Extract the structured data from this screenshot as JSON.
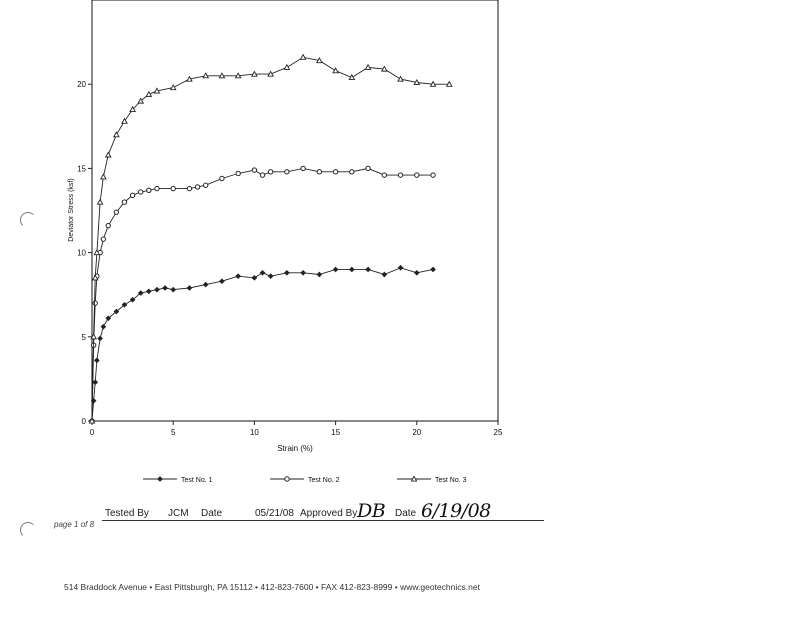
{
  "chart_data": {
    "type": "line",
    "xlabel": "Strain (%)",
    "ylabel": "Deviator Stress (ksf)",
    "xlim": [
      0,
      25
    ],
    "ylim": [
      0,
      25
    ],
    "xticks": [
      "0",
      "5",
      "10",
      "15",
      "20",
      "25"
    ],
    "yticks": [
      "0",
      "5",
      "10",
      "15",
      "20"
    ],
    "grid": false,
    "legend_position": "bottom",
    "series": [
      {
        "name": "Test No. 1",
        "marker": "diamond",
        "x": [
          0,
          0.1,
          0.2,
          0.3,
          0.5,
          0.7,
          1.0,
          1.5,
          2.0,
          2.5,
          3.0,
          3.5,
          4.0,
          4.5,
          5.0,
          6.0,
          7.0,
          8.0,
          9.0,
          10.0,
          10.5,
          11.0,
          12.0,
          13.0,
          14.0,
          15.0,
          16.0,
          17.0,
          18.0,
          19.0,
          20.0,
          21.0
        ],
        "y": [
          0,
          1.2,
          2.3,
          3.6,
          4.9,
          5.6,
          6.1,
          6.5,
          6.9,
          7.2,
          7.6,
          7.7,
          7.8,
          7.9,
          7.8,
          7.9,
          8.1,
          8.3,
          8.6,
          8.5,
          8.8,
          8.6,
          8.8,
          8.8,
          8.7,
          9.0,
          9.0,
          9.0,
          8.7,
          9.1,
          8.8,
          9.0
        ]
      },
      {
        "name": "Test No. 2",
        "marker": "circle",
        "x": [
          0,
          0.1,
          0.2,
          0.3,
          0.5,
          0.7,
          1.0,
          1.5,
          2.0,
          2.5,
          3.0,
          3.5,
          4.0,
          5.0,
          6.0,
          6.5,
          7.0,
          8.0,
          9.0,
          10.0,
          10.5,
          11.0,
          12.0,
          13.0,
          14.0,
          15.0,
          16.0,
          17.0,
          18.0,
          19.0,
          20.0,
          21.0
        ],
        "y": [
          0,
          4.5,
          7.0,
          8.6,
          10.0,
          10.8,
          11.6,
          12.4,
          13.0,
          13.4,
          13.6,
          13.7,
          13.8,
          13.8,
          13.8,
          13.9,
          14.0,
          14.4,
          14.7,
          14.9,
          14.6,
          14.8,
          14.8,
          15.0,
          14.8,
          14.8,
          14.8,
          15.0,
          14.6,
          14.6,
          14.6,
          14.6
        ]
      },
      {
        "name": "Test No. 3",
        "marker": "triangle",
        "x": [
          0,
          0.1,
          0.2,
          0.3,
          0.5,
          0.7,
          1.0,
          1.5,
          2.0,
          2.5,
          3.0,
          3.5,
          4.0,
          5.0,
          6.0,
          7.0,
          8.0,
          9.0,
          10.0,
          11.0,
          12.0,
          13.0,
          14.0,
          15.0,
          16.0,
          17.0,
          18.0,
          19.0,
          20.0,
          21.0,
          22.0
        ],
        "y": [
          0,
          5.0,
          8.5,
          10.0,
          13.0,
          14.5,
          15.8,
          17.0,
          17.8,
          18.5,
          19.0,
          19.4,
          19.6,
          19.8,
          20.3,
          20.5,
          20.5,
          20.5,
          20.6,
          20.6,
          21.0,
          21.6,
          21.4,
          20.8,
          20.4,
          21.0,
          20.9,
          20.3,
          20.1,
          20.0,
          20.0
        ]
      }
    ]
  },
  "footer": {
    "tested_by_label": "Tested By",
    "tested_by": "JCM",
    "date_label": "Date",
    "date": "05/21/08",
    "approved_by_label": "Approved By",
    "approved_by": "DB",
    "date2_label": "Date",
    "date2": "6/19/08",
    "page_label": "page 1 of 8",
    "address": "514 Braddock Avenue  •  East Pittsburgh, PA 15112  •  412-823-7600  •  FAX 412-823-8999  •  www.geotechnics.net"
  },
  "colors": {
    "line": "#222222",
    "axis": "#111111"
  }
}
